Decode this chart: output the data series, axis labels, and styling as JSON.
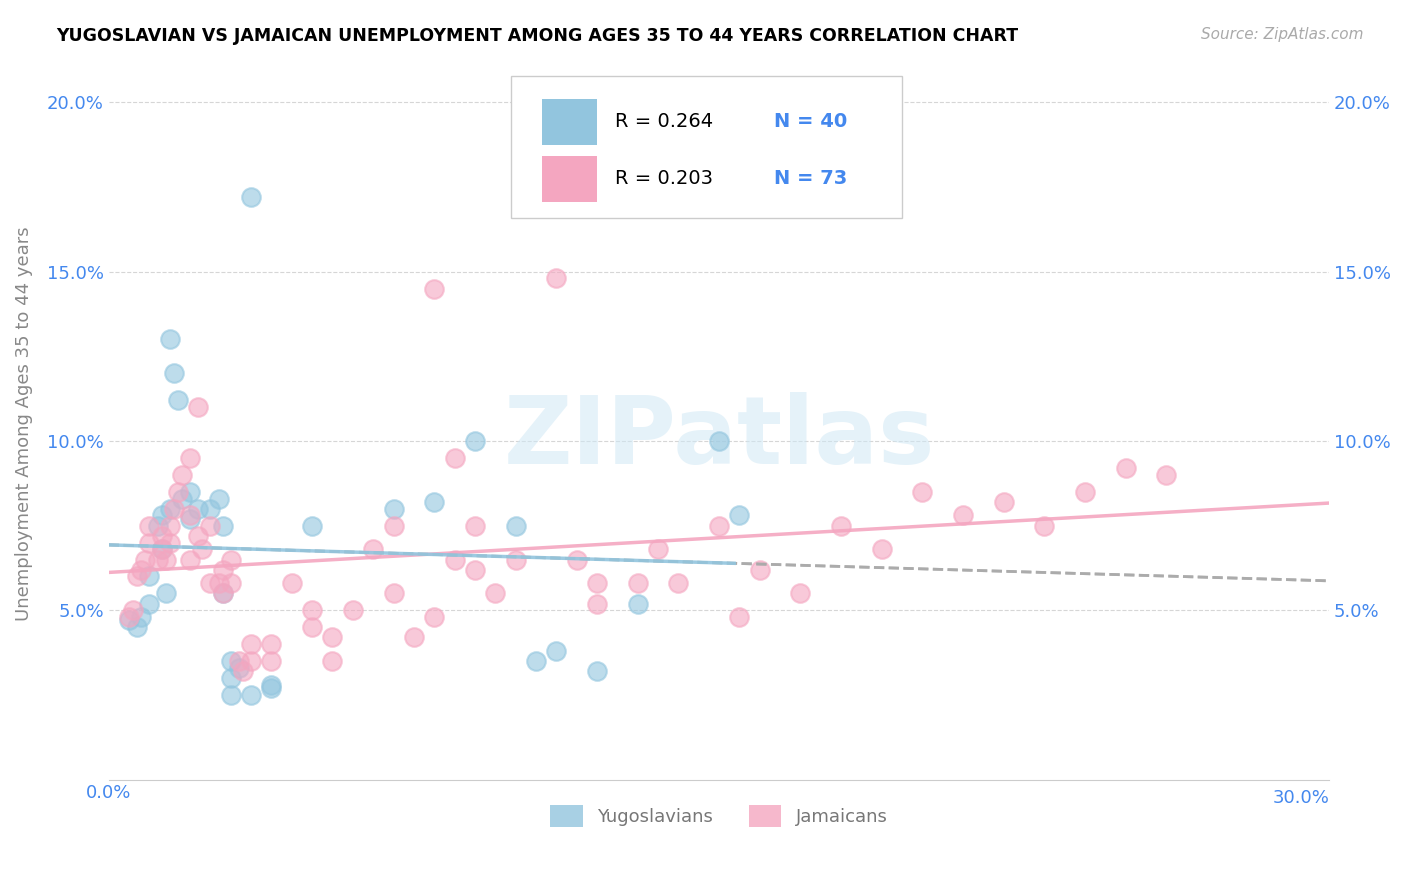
{
  "title": "YUGOSLAVIAN VS JAMAICAN UNEMPLOYMENT AMONG AGES 35 TO 44 YEARS CORRELATION CHART",
  "source": "Source: ZipAtlas.com",
  "ylabel": "Unemployment Among Ages 35 to 44 years",
  "xlim": [
    0.0,
    0.3
  ],
  "ylim": [
    0.0,
    0.21
  ],
  "yticks": [
    0.05,
    0.1,
    0.15,
    0.2
  ],
  "ytick_labels": [
    "5.0%",
    "10.0%",
    "15.0%",
    "20.0%"
  ],
  "xticks": [
    0.0,
    0.05,
    0.1,
    0.15,
    0.2,
    0.25,
    0.3
  ],
  "xtick_labels_right": [
    "",
    "",
    "",
    "",
    "",
    "",
    "30.0%"
  ],
  "xtick_labels_left": [
    "0.0%",
    "",
    "",
    "",
    "",
    "",
    ""
  ],
  "legend_R_yug": "R = 0.264",
  "legend_N_yug": "N = 40",
  "legend_R_jam": "R = 0.203",
  "legend_N_jam": "N = 73",
  "yug_color": "#92c5de",
  "jam_color": "#f4a6c0",
  "trend_yug_color": "#92c5de",
  "trend_jam_color": "#f4a6c0",
  "watermark": "ZIPatlas",
  "tick_color": "#4488ee",
  "ylabel_color": "#888888",
  "yug_scatter": [
    [
      0.005,
      0.047
    ],
    [
      0.007,
      0.045
    ],
    [
      0.008,
      0.048
    ],
    [
      0.01,
      0.06
    ],
    [
      0.01,
      0.052
    ],
    [
      0.012,
      0.075
    ],
    [
      0.013,
      0.078
    ],
    [
      0.013,
      0.068
    ],
    [
      0.014,
      0.055
    ],
    [
      0.015,
      0.08
    ],
    [
      0.015,
      0.13
    ],
    [
      0.016,
      0.12
    ],
    [
      0.017,
      0.112
    ],
    [
      0.018,
      0.083
    ],
    [
      0.02,
      0.085
    ],
    [
      0.02,
      0.077
    ],
    [
      0.022,
      0.08
    ],
    [
      0.025,
      0.08
    ],
    [
      0.027,
      0.083
    ],
    [
      0.028,
      0.075
    ],
    [
      0.028,
      0.055
    ],
    [
      0.03,
      0.035
    ],
    [
      0.03,
      0.03
    ],
    [
      0.03,
      0.025
    ],
    [
      0.032,
      0.033
    ],
    [
      0.035,
      0.025
    ],
    [
      0.035,
      0.172
    ],
    [
      0.04,
      0.028
    ],
    [
      0.04,
      0.027
    ],
    [
      0.05,
      0.075
    ],
    [
      0.07,
      0.08
    ],
    [
      0.08,
      0.082
    ],
    [
      0.09,
      0.1
    ],
    [
      0.1,
      0.075
    ],
    [
      0.105,
      0.035
    ],
    [
      0.11,
      0.038
    ],
    [
      0.12,
      0.032
    ],
    [
      0.13,
      0.052
    ],
    [
      0.15,
      0.1
    ],
    [
      0.155,
      0.078
    ]
  ],
  "jam_scatter": [
    [
      0.005,
      0.048
    ],
    [
      0.006,
      0.05
    ],
    [
      0.007,
      0.06
    ],
    [
      0.008,
      0.062
    ],
    [
      0.009,
      0.065
    ],
    [
      0.01,
      0.07
    ],
    [
      0.01,
      0.075
    ],
    [
      0.012,
      0.065
    ],
    [
      0.013,
      0.072
    ],
    [
      0.013,
      0.068
    ],
    [
      0.014,
      0.065
    ],
    [
      0.015,
      0.07
    ],
    [
      0.015,
      0.075
    ],
    [
      0.016,
      0.08
    ],
    [
      0.017,
      0.085
    ],
    [
      0.018,
      0.09
    ],
    [
      0.02,
      0.095
    ],
    [
      0.02,
      0.078
    ],
    [
      0.02,
      0.065
    ],
    [
      0.022,
      0.11
    ],
    [
      0.022,
      0.072
    ],
    [
      0.023,
      0.068
    ],
    [
      0.025,
      0.075
    ],
    [
      0.025,
      0.058
    ],
    [
      0.027,
      0.058
    ],
    [
      0.028,
      0.062
    ],
    [
      0.028,
      0.055
    ],
    [
      0.03,
      0.065
    ],
    [
      0.03,
      0.058
    ],
    [
      0.032,
      0.035
    ],
    [
      0.033,
      0.032
    ],
    [
      0.035,
      0.04
    ],
    [
      0.035,
      0.035
    ],
    [
      0.04,
      0.035
    ],
    [
      0.04,
      0.04
    ],
    [
      0.045,
      0.058
    ],
    [
      0.05,
      0.05
    ],
    [
      0.05,
      0.045
    ],
    [
      0.055,
      0.042
    ],
    [
      0.055,
      0.035
    ],
    [
      0.06,
      0.05
    ],
    [
      0.065,
      0.068
    ],
    [
      0.07,
      0.075
    ],
    [
      0.07,
      0.055
    ],
    [
      0.075,
      0.042
    ],
    [
      0.08,
      0.048
    ],
    [
      0.08,
      0.145
    ],
    [
      0.085,
      0.095
    ],
    [
      0.085,
      0.065
    ],
    [
      0.09,
      0.075
    ],
    [
      0.09,
      0.062
    ],
    [
      0.095,
      0.055
    ],
    [
      0.1,
      0.065
    ],
    [
      0.11,
      0.148
    ],
    [
      0.115,
      0.065
    ],
    [
      0.12,
      0.058
    ],
    [
      0.12,
      0.052
    ],
    [
      0.13,
      0.058
    ],
    [
      0.135,
      0.068
    ],
    [
      0.14,
      0.058
    ],
    [
      0.15,
      0.075
    ],
    [
      0.155,
      0.048
    ],
    [
      0.16,
      0.062
    ],
    [
      0.17,
      0.055
    ],
    [
      0.18,
      0.075
    ],
    [
      0.19,
      0.068
    ],
    [
      0.2,
      0.085
    ],
    [
      0.21,
      0.078
    ],
    [
      0.22,
      0.082
    ],
    [
      0.23,
      0.075
    ],
    [
      0.24,
      0.085
    ],
    [
      0.25,
      0.092
    ],
    [
      0.26,
      0.09
    ]
  ]
}
